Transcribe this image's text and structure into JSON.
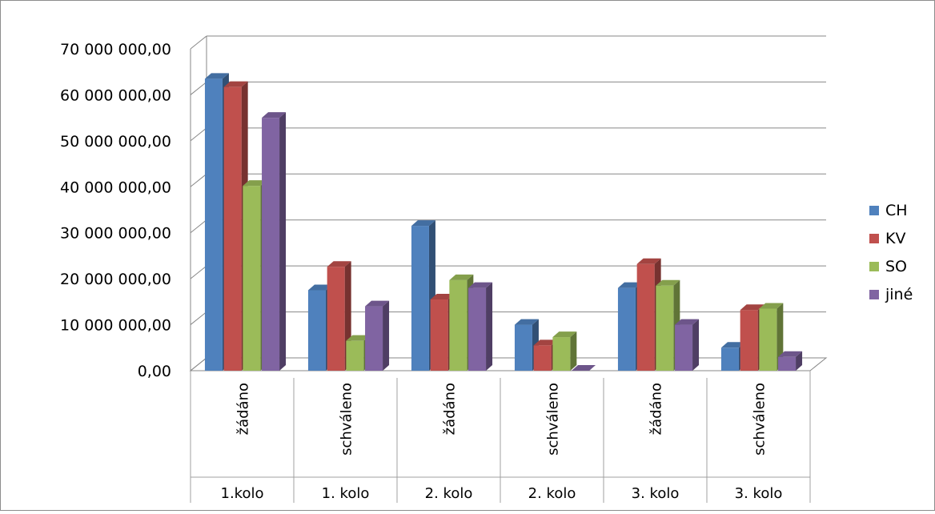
{
  "chart_data": {
    "type": "bar",
    "title": "",
    "xlabel": "",
    "ylabel": "",
    "ylim": [
      0,
      70000000
    ],
    "yticks": [
      "0,00",
      "10 000 000,00",
      "20 000 000,00",
      "30 000 000,00",
      "40 000 000,00",
      "50 000 000,00",
      "60 000 000,00",
      "70 000 000,00"
    ],
    "categories": [
      "žádáno",
      "schváleno",
      "žádáno",
      "schváleno",
      "žádáno",
      "schváleno"
    ],
    "groups": [
      "1.kolo",
      "1. kolo",
      "2. kolo",
      "2. kolo",
      "3. kolo",
      "3. kolo"
    ],
    "series": [
      {
        "name": "CH",
        "color": "#4F81BD",
        "values": [
          63500000,
          17500000,
          31500000,
          10000000,
          18000000,
          5000000
        ]
      },
      {
        "name": "KV",
        "color": "#C0504D",
        "values": [
          61700000,
          22600000,
          15500000,
          5500000,
          23200000,
          13200000
        ]
      },
      {
        "name": "SO",
        "color": "#9BBB59",
        "values": [
          40200000,
          6500000,
          19700000,
          7300000,
          18500000,
          13500000
        ]
      },
      {
        "name": "jiné",
        "color": "#8064A2",
        "values": [
          55000000,
          14000000,
          18000000,
          0,
          10000000,
          3000000
        ]
      }
    ],
    "grid": true,
    "legend": "right",
    "style": "3d-clustered-column"
  }
}
